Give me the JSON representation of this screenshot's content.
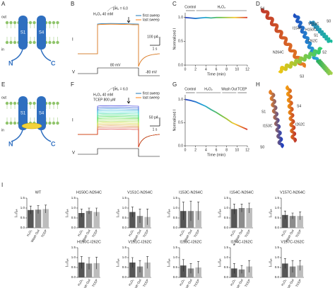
{
  "panels": {
    "A": {
      "label": "A",
      "out": "out",
      "in": "in",
      "s1": "S1",
      "s4": "S4",
      "n": "N",
      "c": "C"
    },
    "B": {
      "label": "B",
      "ph": "pHₒ = 6.0",
      "drug": "H₂O₂ 40 mM",
      "first": "first sweep",
      "last": "last sweep",
      "scale_i": "100 pA",
      "scale_t": "1 s",
      "i": "I",
      "v": "V",
      "v1": "80 mV",
      "v2": "-80 mV"
    },
    "C": {
      "label": "C"
    },
    "D": {
      "label": "D",
      "labels": [
        "S4",
        "S0",
        "V151C",
        "I154C",
        "H150C",
        "I262C",
        "N264C",
        "S2",
        "S3",
        "S1"
      ]
    },
    "E": {
      "label": "E",
      "out": "out",
      "in": "in",
      "s1": "S1",
      "s4": "S4",
      "n": "N",
      "c": "C"
    },
    "F": {
      "label": "F",
      "ph": "pHₒ = 6.0",
      "drug": "H₂O₂ 40 mM",
      "tcep": "TCEP 800 µM",
      "first": "first sweep",
      "last": "last sweep",
      "scale_i": "50 pA",
      "scale_t": "1 s",
      "i": "I",
      "v": "V"
    },
    "G": {
      "label": "G"
    },
    "H": {
      "label": "H",
      "labels": [
        "S1",
        "S4",
        "I153C",
        "I262C",
        "S0"
      ]
    },
    "I": {
      "label": "I"
    }
  },
  "chart_data": [
    {
      "type": "line",
      "xlabel": "Time (min)",
      "ylabel": "Normalized I",
      "annotations": [
        "Control",
        "H₂O₂"
      ],
      "x": [
        0,
        1,
        2,
        3,
        4,
        5,
        6,
        7,
        8,
        9,
        10,
        11,
        12
      ],
      "values": [
        1.0,
        0.99,
        0.98,
        0.99,
        1.0,
        0.99,
        1.0,
        1.0,
        1.0,
        1.0,
        1.0,
        1.0,
        1.0
      ],
      "xlim": [
        0,
        12
      ],
      "ylim": [
        0,
        1.1
      ],
      "xticks": [
        0,
        2,
        4,
        6,
        8,
        10,
        12
      ],
      "yticks": [
        {
          "value": 0,
          "label": "0.0"
        },
        {
          "value": 0.5,
          "label": "0.5"
        },
        {
          "value": 1,
          "label": "1.0"
        }
      ]
    },
    {
      "type": "line",
      "xlabel": "Time (min)",
      "ylabel": "Normalized I",
      "annotations": [
        "Control",
        "H₂O₂",
        "Wash Out",
        "TCEP"
      ],
      "x": [
        0,
        1,
        2,
        3,
        4,
        5,
        6,
        7,
        8,
        9,
        10,
        11,
        12
      ],
      "values": [
        1.0,
        0.98,
        0.95,
        0.9,
        0.85,
        0.78,
        0.72,
        0.65,
        0.58,
        0.5,
        0.45,
        0.4,
        0.35
      ],
      "xlim": [
        0,
        12
      ],
      "ylim": [
        0,
        1.1
      ],
      "xticks": [
        0,
        2,
        4,
        6,
        8,
        10,
        12
      ],
      "yticks": [
        {
          "value": 0,
          "label": "0.0"
        },
        {
          "value": 0.5,
          "label": "0.5"
        },
        {
          "value": 1,
          "label": "1.0"
        }
      ]
    },
    {
      "type": "bar",
      "title": "WT",
      "ylabel": "Iₛₛ/Iₚₖ",
      "categories": [
        "H₂O₂",
        "Wash Out",
        "TCEP"
      ],
      "colors": [
        "#555555",
        "#8c8c8c",
        "#bdbdbd"
      ],
      "values": [
        0.9,
        0.92,
        0.95
      ],
      "errors": [
        0.2,
        0.2,
        0.2
      ],
      "ylim": [
        0,
        1.5
      ],
      "yticks": [
        {
          "value": 0,
          "label": "0.0"
        },
        {
          "value": 0.5,
          "label": "0.5"
        },
        {
          "value": 1,
          "label": "1.0"
        },
        {
          "value": 1.5,
          "label": "1.5"
        }
      ]
    },
    {
      "type": "bar",
      "title": "H150C-N264C",
      "ylabel": "Iₛₛ/Iₚₖ",
      "categories": [
        "H₂O₂",
        "Wash Out",
        "TCEP"
      ],
      "colors": [
        "#555555",
        "#8c8c8c",
        "#bdbdbd"
      ],
      "values": [
        0.75,
        0.85,
        0.8
      ],
      "errors": [
        0.2,
        0.15,
        0.2
      ],
      "ylim": [
        0,
        1.5
      ],
      "yticks": [
        {
          "value": 0,
          "label": "0.0"
        },
        {
          "value": 0.5,
          "label": "0.5"
        },
        {
          "value": 1,
          "label": "1.0"
        },
        {
          "value": 1.5,
          "label": "1.5"
        }
      ]
    },
    {
      "type": "bar",
      "title": "V151C-N264C",
      "ylabel": "Iₛₛ/Iₚₖ",
      "categories": [
        "H₂O₂",
        "Wash Out",
        "TCEP"
      ],
      "colors": [
        "#555555",
        "#8c8c8c",
        "#bdbdbd"
      ],
      "values": [
        0.8,
        0.6,
        0.55
      ],
      "errors": [
        0.25,
        0.35,
        0.4
      ],
      "ylim": [
        0,
        1.5
      ],
      "yticks": [
        {
          "value": 0,
          "label": "0.0"
        },
        {
          "value": 0.5,
          "label": "0.5"
        },
        {
          "value": 1,
          "label": "1.0"
        },
        {
          "value": 1.5,
          "label": "1.5"
        }
      ]
    },
    {
      "type": "bar",
      "title": "I153C-N264C",
      "ylabel": "Iₛₛ/Iₚₖ",
      "categories": [
        "H₂O₂",
        "Wash Out",
        "TCEP"
      ],
      "colors": [
        "#555555",
        "#8c8c8c",
        "#bdbdbd"
      ],
      "values": [
        0.85,
        0.85,
        0.85
      ],
      "errors": [
        0.45,
        0.5,
        0.45
      ],
      "ylim": [
        0,
        1.5
      ],
      "yticks": [
        {
          "value": 0,
          "label": "0.0"
        },
        {
          "value": 0.5,
          "label": "0.5"
        },
        {
          "value": 1,
          "label": "1.0"
        },
        {
          "value": 1.5,
          "label": "1.5"
        }
      ]
    },
    {
      "type": "bar",
      "title": "I154C-N264C",
      "ylabel": "Iₛₛ/Iₚₖ",
      "categories": [
        "H₂O₂",
        "Wash Out",
        "TCEP"
      ],
      "colors": [
        "#555555",
        "#8c8c8c",
        "#bdbdbd"
      ],
      "values": [
        0.95,
        1.0,
        1.0
      ],
      "errors": [
        0.25,
        0.2,
        0.25
      ],
      "ylim": [
        0,
        1.5
      ],
      "yticks": [
        {
          "value": 0,
          "label": "0.0"
        },
        {
          "value": 0.5,
          "label": "0.5"
        },
        {
          "value": 1,
          "label": "1.0"
        },
        {
          "value": 1.5,
          "label": "1.5"
        }
      ]
    },
    {
      "type": "bar",
      "title": "V157C-N264C",
      "ylabel": "Iₛₛ/Iₚₖ",
      "categories": [
        "H₂O₂",
        "Wash Out",
        "TCEP"
      ],
      "colors": [
        "#555555",
        "#8c8c8c",
        "#bdbdbd"
      ],
      "values": [
        0.65,
        0.6,
        0.6
      ],
      "errors": [
        0.2,
        0.15,
        0.2
      ],
      "ylim": [
        0,
        1.5
      ],
      "yticks": [
        {
          "value": 0,
          "label": "0.0"
        },
        {
          "value": 0.5,
          "label": "0.5"
        },
        {
          "value": 1,
          "label": "1.0"
        },
        {
          "value": 1.5,
          "label": "1.5"
        }
      ]
    },
    {
      "type": "bar",
      "title": "H150C-I262C",
      "ylabel": "Iₛₛ/Iₚₖ",
      "categories": [
        "H₂O₂",
        "Wash Out",
        "TCEP"
      ],
      "colors": [
        "#555555",
        "#8c8c8c",
        "#bdbdbd"
      ],
      "values": [
        0.75,
        0.7,
        0.72
      ],
      "errors": [
        0.3,
        0.3,
        0.3
      ],
      "ylim": [
        0,
        1.5
      ],
      "yticks": [
        {
          "value": 0,
          "label": "0.0"
        },
        {
          "value": 0.5,
          "label": "0.5"
        },
        {
          "value": 1,
          "label": "1.0"
        },
        {
          "value": 1.5,
          "label": "1.5"
        }
      ]
    },
    {
      "type": "bar",
      "title": "V151C-I262C",
      "ylabel": "Iₛₛ/Iₚₖ",
      "categories": [
        "H₂O₂",
        "Wash Out",
        "TCEP"
      ],
      "colors": [
        "#555555",
        "#8c8c8c",
        "#bdbdbd"
      ],
      "values": [
        0.75,
        0.55,
        0.75
      ],
      "errors": [
        0.25,
        0.3,
        0.3
      ],
      "ylim": [
        0,
        1.5
      ],
      "yticks": [
        {
          "value": 0,
          "label": "0.0"
        },
        {
          "value": 0.5,
          "label": "0.5"
        },
        {
          "value": 1,
          "label": "1.0"
        },
        {
          "value": 1.5,
          "label": "1.5"
        }
      ]
    },
    {
      "type": "bar",
      "title": "I153C-I262C",
      "ylabel": "Iₛₛ/Iₚₖ",
      "categories": [
        "H₂O₂",
        "Wash Out",
        "TCEP"
      ],
      "colors": [
        "#555555",
        "#8c8c8c",
        "#bdbdbd"
      ],
      "values": [
        0.6,
        0.45,
        0.5
      ],
      "errors": [
        0.3,
        0.25,
        0.3
      ],
      "ylim": [
        0,
        1.5
      ],
      "yticks": [
        {
          "value": 0,
          "label": "0.0"
        },
        {
          "value": 0.5,
          "label": "0.5"
        },
        {
          "value": 1,
          "label": "1.0"
        },
        {
          "value": 1.5,
          "label": "1.5"
        }
      ]
    },
    {
      "type": "bar",
      "title": "I154C-I262C",
      "ylabel": "Iₛₛ/Iₚₖ",
      "annotation": "*",
      "categories": [
        "H₂O₂",
        "Wash Out",
        "TCEP"
      ],
      "colors": [
        "#555555",
        "#8c8c8c",
        "#bdbdbd"
      ],
      "values": [
        0.45,
        0.4,
        0.55
      ],
      "errors": [
        0.25,
        0.2,
        0.3
      ],
      "ylim": [
        0,
        1.5
      ],
      "yticks": [
        {
          "value": 0,
          "label": "0.0"
        },
        {
          "value": 0.5,
          "label": "0.5"
        },
        {
          "value": 1,
          "label": "1.0"
        },
        {
          "value": 1.5,
          "label": "1.5"
        }
      ]
    },
    {
      "type": "bar",
      "title": "V157C-I262C",
      "ylabel": "Iₛₛ/Iₚₖ",
      "categories": [
        "H₂O₂",
        "Wash Out",
        "TCEP"
      ],
      "colors": [
        "#555555",
        "#8c8c8c",
        "#bdbdbd"
      ],
      "values": [
        0.7,
        0.55,
        0.6
      ],
      "errors": [
        0.25,
        0.3,
        0.25
      ],
      "ylim": [
        0,
        1.5
      ],
      "yticks": [
        {
          "value": 0,
          "label": "0.0"
        },
        {
          "value": 0.5,
          "label": "0.5"
        },
        {
          "value": 1,
          "label": "1.0"
        },
        {
          "value": 1.5,
          "label": "1.5"
        }
      ]
    }
  ]
}
